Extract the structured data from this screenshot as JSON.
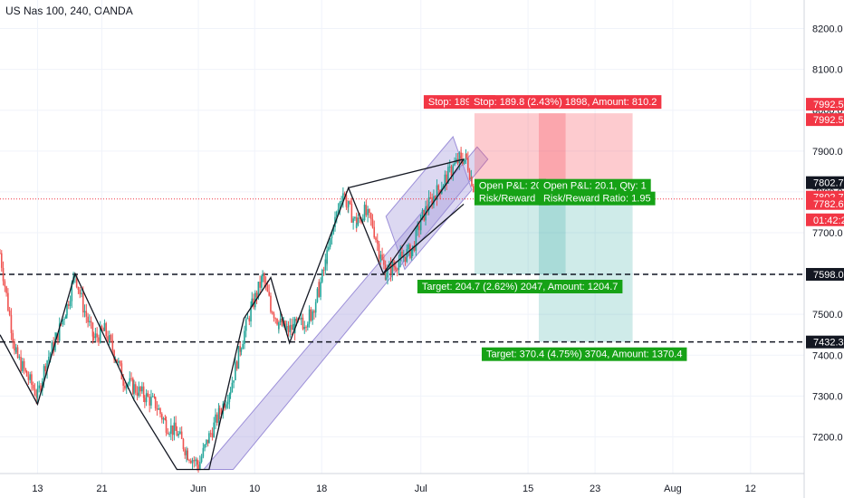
{
  "chart_data": {
    "type": "candlestick",
    "title": "US Nas 100, 240, OANDA",
    "ylim": [
      7110,
      8270
    ],
    "xlim": [
      0,
      300
    ],
    "grid": true,
    "y_ticks": [
      7200,
      7300,
      7400,
      7500,
      7600,
      7700,
      7800,
      7900,
      8000,
      8100,
      8200
    ],
    "y_tick_labels": [
      "7200.0",
      "7300.0",
      "7400.0",
      "7500.0",
      "7600.0",
      "7700.0",
      "7800.0",
      "7900.0",
      "8000.0",
      "8100.0",
      "8200.0"
    ],
    "x_ticks": [
      {
        "label": "13",
        "x": 14
      },
      {
        "label": "21",
        "x": 38
      },
      {
        "label": "Jun",
        "x": 74
      },
      {
        "label": "10",
        "x": 95
      },
      {
        "label": "18",
        "x": 120
      },
      {
        "label": "Jul",
        "x": 157
      },
      {
        "label": "15",
        "x": 197
      },
      {
        "label": "23",
        "x": 222
      },
      {
        "label": "Aug",
        "x": 251
      },
      {
        "label": "12",
        "x": 280
      }
    ],
    "candle_keys": [
      [
        0,
        7650
      ],
      [
        3,
        7520
      ],
      [
        6,
        7400
      ],
      [
        10,
        7350
      ],
      [
        14,
        7300
      ],
      [
        17,
        7380
      ],
      [
        21,
        7440
      ],
      [
        25,
        7520
      ],
      [
        28,
        7600
      ],
      [
        31,
        7520
      ],
      [
        35,
        7440
      ],
      [
        39,
        7460
      ],
      [
        43,
        7400
      ],
      [
        46,
        7340
      ],
      [
        50,
        7320
      ],
      [
        54,
        7300
      ],
      [
        58,
        7280
      ],
      [
        62,
        7230
      ],
      [
        66,
        7210
      ],
      [
        70,
        7160
      ],
      [
        74,
        7130
      ],
      [
        78,
        7200
      ],
      [
        82,
        7260
      ],
      [
        86,
        7320
      ],
      [
        90,
        7430
      ],
      [
        94,
        7520
      ],
      [
        98,
        7590
      ],
      [
        101,
        7520
      ],
      [
        104,
        7480
      ],
      [
        107,
        7460
      ],
      [
        110,
        7470
      ],
      [
        113,
        7480
      ],
      [
        116,
        7500
      ],
      [
        119,
        7560
      ],
      [
        122,
        7640
      ],
      [
        125,
        7730
      ],
      [
        128,
        7800
      ],
      [
        130,
        7760
      ],
      [
        133,
        7720
      ],
      [
        136,
        7750
      ],
      [
        139,
        7720
      ],
      [
        142,
        7640
      ],
      [
        144,
        7600
      ],
      [
        147,
        7620
      ],
      [
        150,
        7640
      ],
      [
        154,
        7660
      ],
      [
        157,
        7730
      ],
      [
        160,
        7770
      ],
      [
        163,
        7800
      ],
      [
        166,
        7830
      ],
      [
        169,
        7860
      ],
      [
        172,
        7885
      ],
      [
        174,
        7880
      ],
      [
        176,
        7830
      ],
      [
        177,
        7800
      ]
    ],
    "zigzag": [
      [
        0,
        7450
      ],
      [
        14,
        7280
      ],
      [
        28,
        7600
      ],
      [
        50,
        7290
      ],
      [
        66,
        7120
      ],
      [
        78,
        7120
      ],
      [
        91,
        7490
      ],
      [
        101,
        7590
      ],
      [
        108,
        7430
      ],
      [
        130,
        7810
      ],
      [
        143,
        7600
      ],
      [
        173,
        7880
      ]
    ],
    "wedge_top": [
      [
        130,
        7810
      ],
      [
        173,
        7880
      ]
    ],
    "wedge_bottom": [
      [
        143,
        7600
      ],
      [
        173,
        7770
      ]
    ],
    "channel": {
      "lower_from": [
        87,
        7120
      ],
      "lower_to": [
        182,
        7880
      ],
      "upper_from": [
        76,
        7120
      ],
      "upper_to": [
        178,
        7910
      ]
    },
    "small_channel": {
      "a": [
        144,
        7740
      ],
      "b": [
        169,
        7935
      ],
      "c": [
        176,
        7805
      ],
      "d": [
        151,
        7610
      ]
    },
    "horizontal_lines": [
      {
        "y": 7598.0,
        "style": "dashed"
      },
      {
        "y": 7432.3,
        "style": "dashed"
      },
      {
        "y": 7782.6,
        "style": "dotted",
        "color": "#f23645"
      }
    ],
    "positions": [
      {
        "x_from": 177,
        "x_to": 211,
        "entry": 7802.7,
        "stop": 7992.5,
        "target": 7598.0,
        "stop_label": "Stop: 189.8 (2",
        "pl_label": "Open P&L: 20",
        "rr_label": "Risk/Reward R",
        "target_label": "Target: 204.7 (2.62%) 2047, Amount: 1204.7"
      },
      {
        "x_from": 201,
        "x_to": 236,
        "entry": 7802.7,
        "stop": 7992.5,
        "target": 7432.3,
        "stop_label": "Stop: 189.8 (2.43%) 1898, Amount: 810.2",
        "pl_label": "Open P&L: 20.1, Qty: 1",
        "rr_label": "Risk/Reward Ratio: 1.95",
        "target_label": "Target: 370.4 (4.75%) 3704, Amount: 1370.4"
      }
    ],
    "price_tags": [
      {
        "label": "7992.5",
        "y": 7992.5,
        "offset": -10,
        "color": "#f23645"
      },
      {
        "label": "7992.5",
        "y": 7992.5,
        "offset": 7,
        "color": "#f23645"
      },
      {
        "label": "7802.7",
        "y": 7802.7,
        "offset": -9,
        "color": "#131722"
      },
      {
        "label": "7802.7",
        "y": 7802.7,
        "offset": 7,
        "color": "#f23645"
      },
      {
        "label": "7782.6",
        "y": 7782.6,
        "offset": 5,
        "color": "#f23645"
      },
      {
        "label": "01:42:23",
        "y": 7782.6,
        "offset": 23,
        "color": "#f23645"
      },
      {
        "label": "7598.0",
        "y": 7598.0,
        "offset": 0,
        "color": "#131722"
      },
      {
        "label": "7432.3",
        "y": 7432.3,
        "offset": 0,
        "color": "#131722"
      }
    ],
    "colors": {
      "up": "#26a69a",
      "down": "#ef5350",
      "channel": "#9c8fd8",
      "stop_box": "#f7525f",
      "target_box": "#26a69a",
      "label_red": "#f23645",
      "label_green": "#16a216"
    }
  }
}
